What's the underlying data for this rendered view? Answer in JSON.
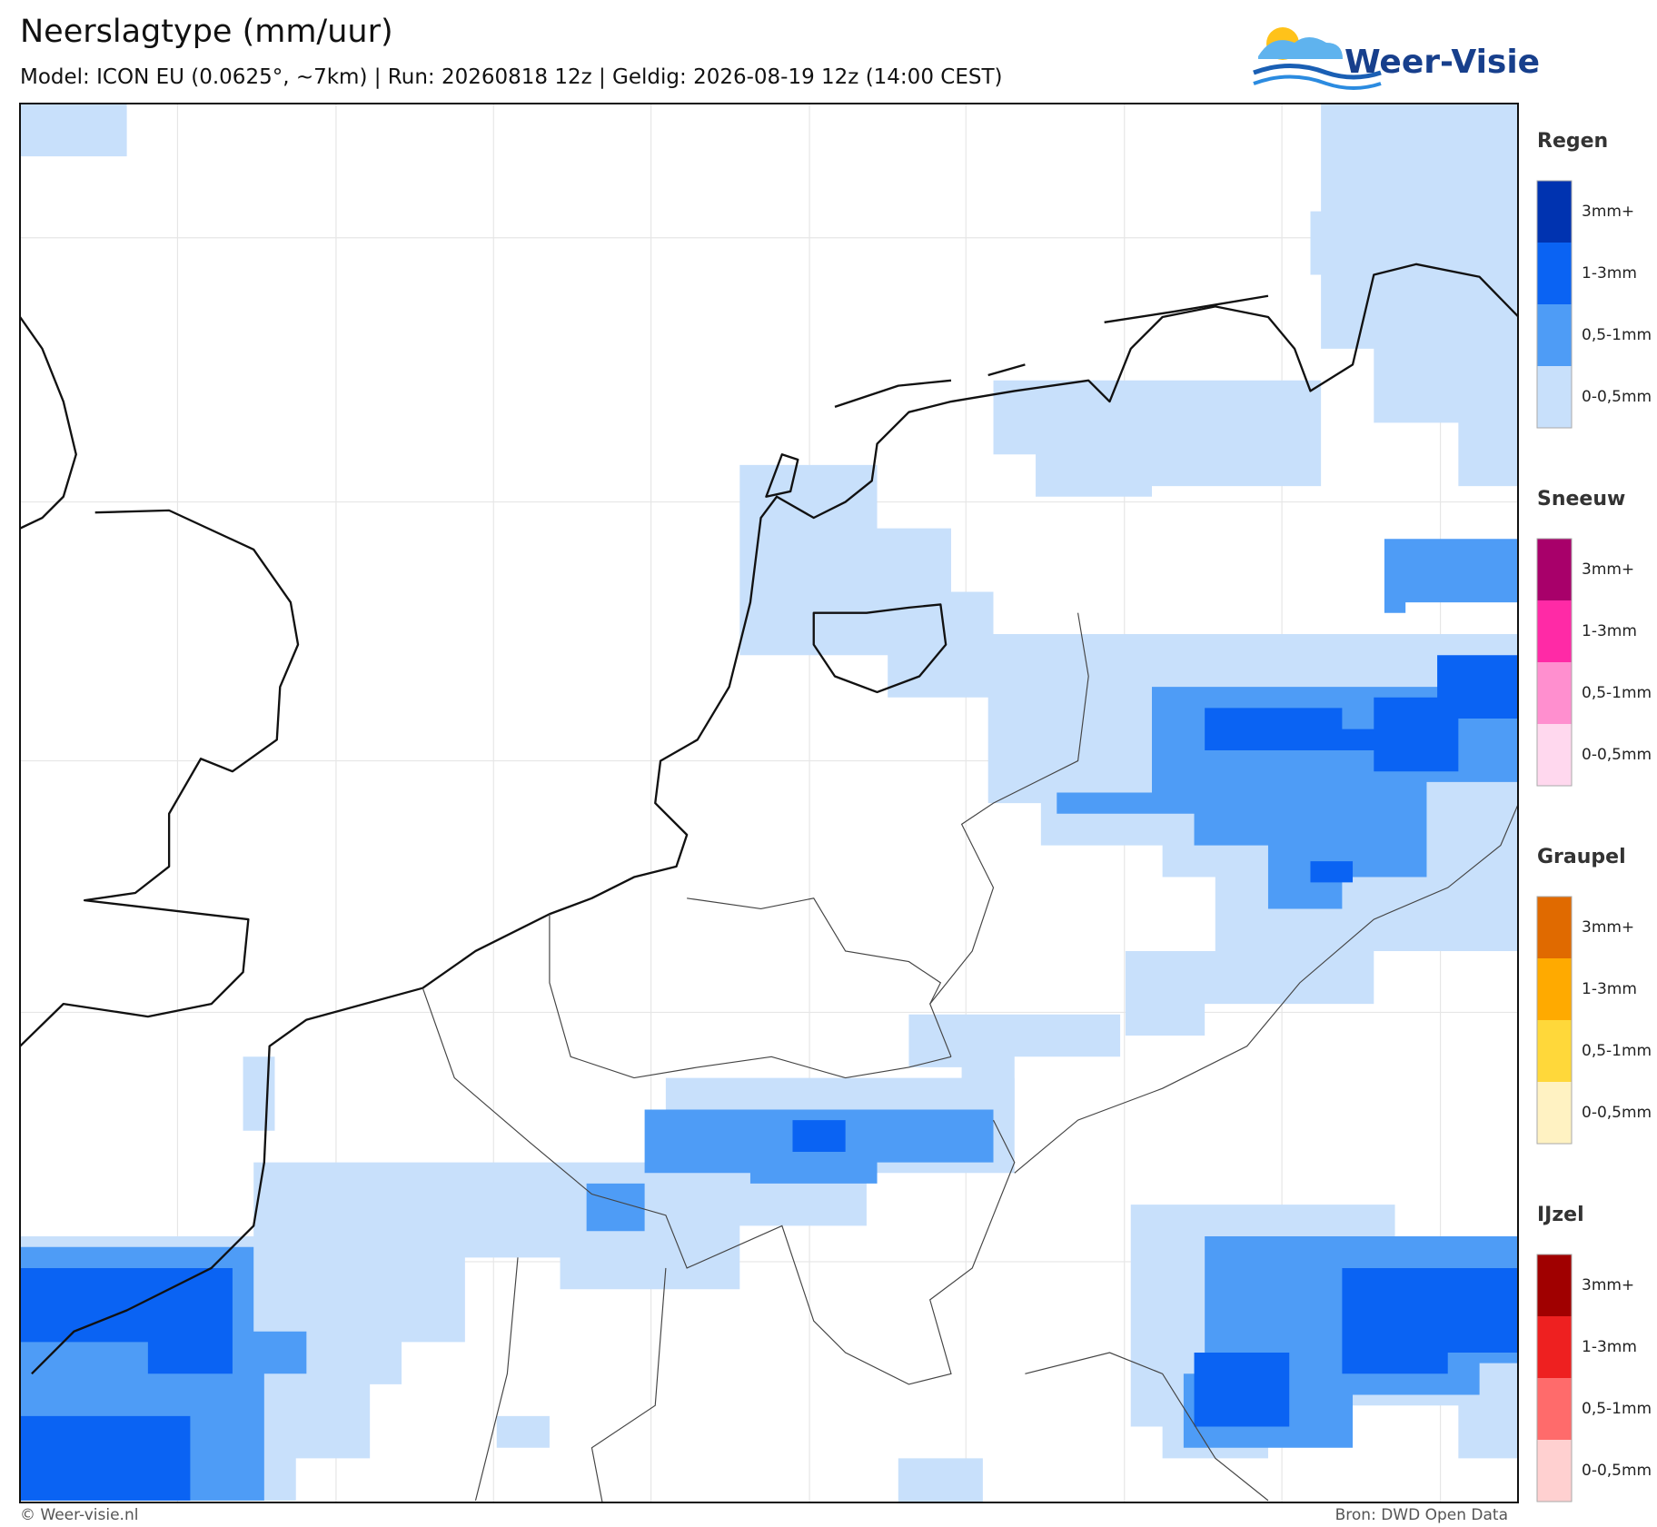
{
  "header": {
    "title": "Neerslagtype (mm/uur)",
    "subtitle": "Model: ICON EU (0.0625°, ~7km)  |  Run: 20260818 12z  |  Geldig: 2026-08-19 12z (14:00 CEST)"
  },
  "logo": {
    "text": "Weer-Visie"
  },
  "legend": {
    "groups": [
      {
        "title": "Regen",
        "items": [
          {
            "label": "3mm+",
            "color": "#0033b0"
          },
          {
            "label": "1-3mm",
            "color": "#0a63f3"
          },
          {
            "label": "0,5-1mm",
            "color": "#4e9cf6"
          },
          {
            "label": "0-0,5mm",
            "color": "#c8e0fb"
          }
        ]
      },
      {
        "title": "Sneeuw",
        "items": [
          {
            "label": "3mm+",
            "color": "#a8006a"
          },
          {
            "label": "1-3mm",
            "color": "#ff2aa6"
          },
          {
            "label": "0,5-1mm",
            "color": "#ff8fcf"
          },
          {
            "label": "0-0,5mm",
            "color": "#ffd8ee"
          }
        ]
      },
      {
        "title": "Graupel",
        "items": [
          {
            "label": "3mm+",
            "color": "#e06a00"
          },
          {
            "label": "1-3mm",
            "color": "#ffaa00"
          },
          {
            "label": "0,5-1mm",
            "color": "#ffd83a"
          },
          {
            "label": "0-0,5mm",
            "color": "#fff2c2"
          }
        ]
      },
      {
        "title": "IJzel",
        "items": [
          {
            "label": "3mm+",
            "color": "#a00000"
          },
          {
            "label": "1-3mm",
            "color": "#ee2020"
          },
          {
            "label": "0,5-1mm",
            "color": "#ff6b6b"
          },
          {
            "label": "0-0,5mm",
            "color": "#ffd0d0"
          }
        ]
      }
    ]
  },
  "footer": {
    "left": "© Weer-visie.nl",
    "right": "Bron: DWD Open Data"
  }
}
